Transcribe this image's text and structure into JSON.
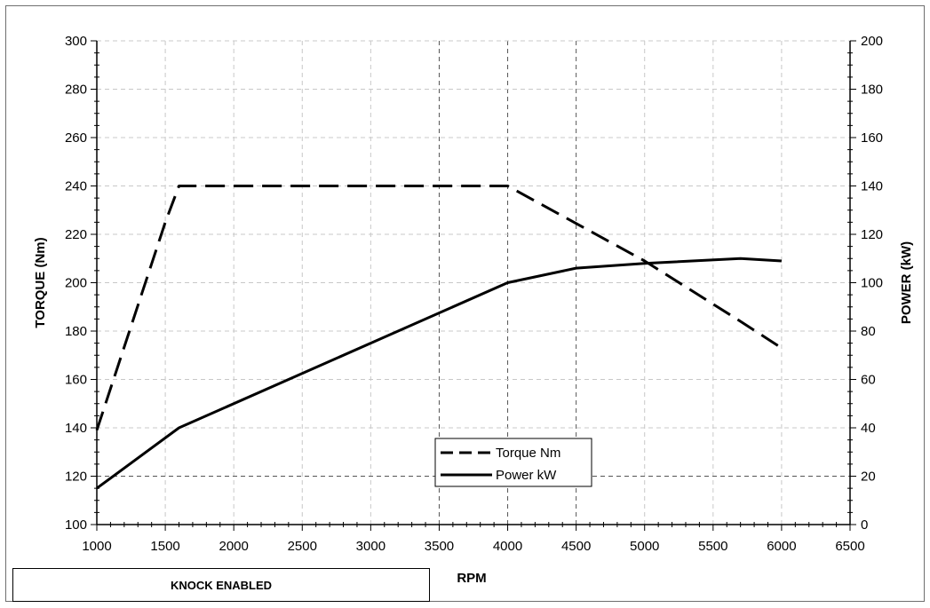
{
  "chart_data": {
    "type": "line",
    "xlabel": "RPM",
    "ylabel_left": "TORQUE (Nm)",
    "ylabel_right": "POWER (kW)",
    "xlim": [
      1000,
      6500
    ],
    "xticks": [
      1000,
      1500,
      2000,
      2500,
      3000,
      3500,
      4000,
      4500,
      5000,
      5500,
      6000,
      6500
    ],
    "ylim_left": [
      100,
      300
    ],
    "yticks_left": [
      100,
      120,
      140,
      160,
      180,
      200,
      220,
      240,
      260,
      280,
      300
    ],
    "ylim_right": [
      0,
      200
    ],
    "yticks_right": [
      0,
      20,
      40,
      60,
      80,
      100,
      120,
      140,
      160,
      180,
      200
    ],
    "grid": true,
    "legend_position": "bottom-center",
    "series": [
      {
        "name": "Torque Nm",
        "axis": "left",
        "style": "dashed",
        "x": [
          1000,
          1500,
          1600,
          4000,
          5000,
          5700,
          6000
        ],
        "y": [
          139,
          225,
          240,
          240,
          209,
          184,
          173
        ]
      },
      {
        "name": "Power kW",
        "axis": "right",
        "style": "solid",
        "x": [
          1000,
          1600,
          4000,
          4500,
          5000,
          5700,
          6000
        ],
        "y": [
          15,
          40,
          100,
          106,
          108,
          110,
          109
        ]
      }
    ]
  },
  "footer": {
    "knock_label": "KNOCK ENABLED"
  }
}
